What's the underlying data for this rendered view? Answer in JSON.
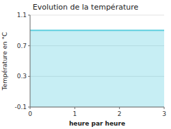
{
  "chart_data": {
    "type": "area",
    "title": "Evolution de la température",
    "xlabel": "heure par heure",
    "ylabel": "Température en °C",
    "x": [
      0,
      3
    ],
    "values": [
      0.9,
      0.9
    ],
    "color": "#5ecfdf",
    "xlim": [
      0,
      3
    ],
    "ylim": [
      -0.1,
      1.1
    ],
    "xticks": [
      0,
      1,
      2,
      3
    ],
    "yticks": [
      -0.1,
      0.3,
      0.7,
      1.1
    ],
    "grid": true
  }
}
